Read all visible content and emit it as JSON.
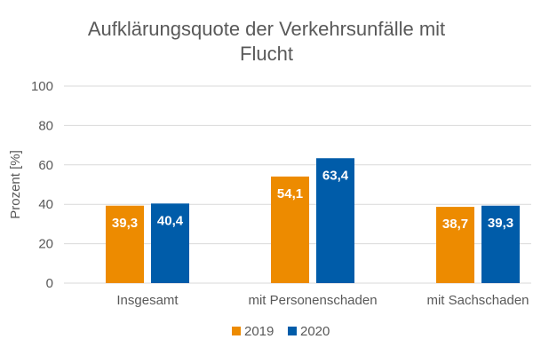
{
  "chart_data": {
    "type": "bar",
    "title": "Aufklärungsquote der Verkehrsunfälle mit Flucht",
    "title_lines": [
      "Aufklärungsquote der Verkehrsunfälle mit",
      "Flucht"
    ],
    "xlabel": "",
    "ylabel": "Prozent [%]",
    "ylim": [
      0,
      100
    ],
    "yticks": [
      0,
      20,
      40,
      60,
      80,
      100
    ],
    "grid": true,
    "legend_position": "bottom",
    "categories": [
      "Insgesamt",
      "mit Personenschaden",
      "mit Sachschaden"
    ],
    "series": [
      {
        "name": "2019",
        "color": "#ed8b00",
        "values": [
          39.3,
          54.1,
          38.7
        ],
        "labels": [
          "39,3",
          "54,1",
          "38,7"
        ]
      },
      {
        "name": "2020",
        "color": "#005ca9",
        "values": [
          40.4,
          63.4,
          39.3
        ],
        "labels": [
          "40,4",
          "63,4",
          "39,3"
        ]
      }
    ]
  }
}
